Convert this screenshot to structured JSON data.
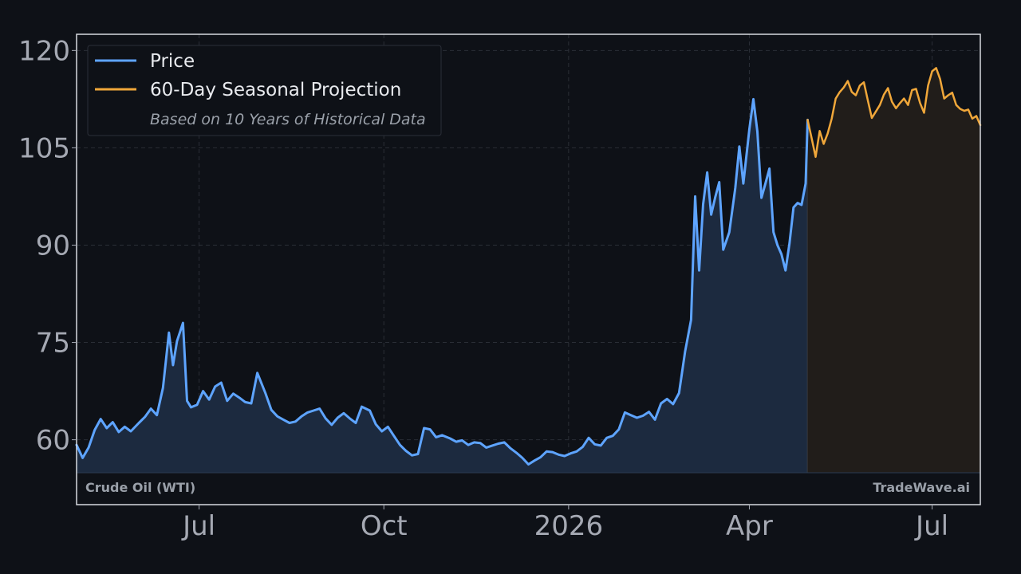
{
  "chart_data": {
    "type": "line",
    "instrument": "Crude Oil (WTI)",
    "watermark": "TradeWave.ai",
    "x_axis": {
      "tick_labels": [
        "Jul",
        "Oct",
        "2026",
        "Apr",
        "Jul"
      ],
      "ticks": [
        "2025-07-01",
        "2025-10-01",
        "2026-01-01",
        "2026-04-01",
        "2026-07-01"
      ],
      "range": [
        "2025-05-01",
        "2026-07-25"
      ]
    },
    "y_axis": {
      "tick_labels": [
        "60",
        "75",
        "90",
        "105",
        "120"
      ],
      "ticks": [
        60,
        75,
        90,
        105,
        120
      ],
      "range": [
        50,
        122.5
      ]
    },
    "grid": true,
    "legend": {
      "placement": "top-left",
      "entries": [
        {
          "label": "Price",
          "color": "#5ea4ff"
        },
        {
          "label": "60-Day Seasonal Projection",
          "color": "#f0a73a"
        }
      ],
      "note": "Based on 10 Years of Historical Data"
    },
    "series": [
      {
        "name": "Price",
        "color": "#5ea4ff",
        "points": [
          [
            "2025-05-01",
            59.2
          ],
          [
            "2025-05-04",
            57.2
          ],
          [
            "2025-05-07",
            58.8
          ],
          [
            "2025-05-10",
            61.5
          ],
          [
            "2025-05-13",
            63.2
          ],
          [
            "2025-05-16",
            61.8
          ],
          [
            "2025-05-19",
            62.7
          ],
          [
            "2025-05-22",
            61.2
          ],
          [
            "2025-05-25",
            62.0
          ],
          [
            "2025-05-28",
            61.3
          ],
          [
            "2025-06-01",
            62.6
          ],
          [
            "2025-06-04",
            63.5
          ],
          [
            "2025-06-07",
            64.8
          ],
          [
            "2025-06-10",
            63.8
          ],
          [
            "2025-06-13",
            68.0
          ],
          [
            "2025-06-16",
            76.5
          ],
          [
            "2025-06-18",
            71.5
          ],
          [
            "2025-06-20",
            75.2
          ],
          [
            "2025-06-23",
            78.0
          ],
          [
            "2025-06-25",
            66.0
          ],
          [
            "2025-06-27",
            65.0
          ],
          [
            "2025-06-30",
            65.4
          ],
          [
            "2025-07-03",
            67.5
          ],
          [
            "2025-07-06",
            66.2
          ],
          [
            "2025-07-09",
            68.2
          ],
          [
            "2025-07-12",
            68.8
          ],
          [
            "2025-07-15",
            66.0
          ],
          [
            "2025-07-18",
            67.1
          ],
          [
            "2025-07-21",
            66.5
          ],
          [
            "2025-07-24",
            65.8
          ],
          [
            "2025-07-27",
            65.6
          ],
          [
            "2025-07-30",
            70.3
          ],
          [
            "2025-08-03",
            67.2
          ],
          [
            "2025-08-06",
            64.6
          ],
          [
            "2025-08-09",
            63.6
          ],
          [
            "2025-08-12",
            63.1
          ],
          [
            "2025-08-15",
            62.6
          ],
          [
            "2025-08-18",
            62.8
          ],
          [
            "2025-08-21",
            63.6
          ],
          [
            "2025-08-24",
            64.2
          ],
          [
            "2025-08-27",
            64.5
          ],
          [
            "2025-08-30",
            64.8
          ],
          [
            "2025-09-02",
            63.3
          ],
          [
            "2025-09-05",
            62.3
          ],
          [
            "2025-09-08",
            63.4
          ],
          [
            "2025-09-11",
            64.1
          ],
          [
            "2025-09-14",
            63.3
          ],
          [
            "2025-09-17",
            62.6
          ],
          [
            "2025-09-20",
            65.1
          ],
          [
            "2025-09-24",
            64.5
          ],
          [
            "2025-09-27",
            62.4
          ],
          [
            "2025-09-30",
            61.3
          ],
          [
            "2025-10-03",
            62.0
          ],
          [
            "2025-10-06",
            60.6
          ],
          [
            "2025-10-09",
            59.2
          ],
          [
            "2025-10-12",
            58.3
          ],
          [
            "2025-10-15",
            57.6
          ],
          [
            "2025-10-18",
            57.8
          ],
          [
            "2025-10-21",
            61.8
          ],
          [
            "2025-10-24",
            61.6
          ],
          [
            "2025-10-27",
            60.4
          ],
          [
            "2025-10-30",
            60.7
          ],
          [
            "2025-11-03",
            60.2
          ],
          [
            "2025-11-06",
            59.7
          ],
          [
            "2025-11-09",
            59.9
          ],
          [
            "2025-11-12",
            59.2
          ],
          [
            "2025-11-15",
            59.6
          ],
          [
            "2025-11-18",
            59.5
          ],
          [
            "2025-11-21",
            58.8
          ],
          [
            "2025-11-24",
            59.1
          ],
          [
            "2025-11-27",
            59.4
          ],
          [
            "2025-11-30",
            59.6
          ],
          [
            "2025-12-03",
            58.7
          ],
          [
            "2025-12-06",
            58.0
          ],
          [
            "2025-12-09",
            57.2
          ],
          [
            "2025-12-12",
            56.2
          ],
          [
            "2025-12-15",
            56.8
          ],
          [
            "2025-12-18",
            57.3
          ],
          [
            "2025-12-21",
            58.2
          ],
          [
            "2025-12-24",
            58.1
          ],
          [
            "2025-12-27",
            57.7
          ],
          [
            "2025-12-30",
            57.5
          ],
          [
            "2026-01-02",
            57.9
          ],
          [
            "2026-01-05",
            58.2
          ],
          [
            "2026-01-08",
            58.9
          ],
          [
            "2026-01-11",
            60.3
          ],
          [
            "2026-01-14",
            59.3
          ],
          [
            "2026-01-17",
            59.1
          ],
          [
            "2026-01-20",
            60.3
          ],
          [
            "2026-01-23",
            60.6
          ],
          [
            "2026-01-26",
            61.6
          ],
          [
            "2026-01-29",
            64.2
          ],
          [
            "2026-02-01",
            63.8
          ],
          [
            "2026-02-04",
            63.4
          ],
          [
            "2026-02-07",
            63.7
          ],
          [
            "2026-02-10",
            64.3
          ],
          [
            "2026-02-13",
            63.1
          ],
          [
            "2026-02-16",
            65.6
          ],
          [
            "2026-02-19",
            66.3
          ],
          [
            "2026-02-22",
            65.5
          ],
          [
            "2026-02-25",
            67.2
          ],
          [
            "2026-02-28",
            73.6
          ],
          [
            "2026-03-03",
            78.5
          ],
          [
            "2026-03-05",
            97.5
          ],
          [
            "2026-03-07",
            86.1
          ],
          [
            "2026-03-09",
            96.3
          ],
          [
            "2026-03-11",
            101.2
          ],
          [
            "2026-03-13",
            94.7
          ],
          [
            "2026-03-15",
            97.4
          ],
          [
            "2026-03-17",
            99.7
          ],
          [
            "2026-03-19",
            89.3
          ],
          [
            "2026-03-22",
            92.0
          ],
          [
            "2026-03-25",
            98.8
          ],
          [
            "2026-03-27",
            105.2
          ],
          [
            "2026-03-29",
            99.5
          ],
          [
            "2026-04-01",
            107.9
          ],
          [
            "2026-04-03",
            112.5
          ],
          [
            "2026-04-05",
            107.5
          ],
          [
            "2026-04-07",
            97.3
          ],
          [
            "2026-04-09",
            99.5
          ],
          [
            "2026-04-11",
            101.8
          ],
          [
            "2026-04-13",
            92.0
          ],
          [
            "2026-04-15",
            90.0
          ],
          [
            "2026-04-17",
            88.6
          ],
          [
            "2026-04-19",
            86.1
          ],
          [
            "2026-04-21",
            90.3
          ],
          [
            "2026-04-23",
            95.8
          ],
          [
            "2026-04-25",
            96.5
          ],
          [
            "2026-04-27",
            96.2
          ],
          [
            "2026-04-29",
            99.5
          ],
          [
            "2026-04-30",
            109.3
          ]
        ]
      },
      {
        "name": "60-Day Seasonal Projection",
        "color": "#f0a73a",
        "points": [
          [
            "2026-04-30",
            109.3
          ],
          [
            "2026-05-02",
            106.5
          ],
          [
            "2026-05-04",
            103.6
          ],
          [
            "2026-05-06",
            107.6
          ],
          [
            "2026-05-08",
            105.6
          ],
          [
            "2026-05-10",
            107.2
          ],
          [
            "2026-05-12",
            109.5
          ],
          [
            "2026-05-14",
            112.6
          ],
          [
            "2026-05-16",
            113.6
          ],
          [
            "2026-05-18",
            114.3
          ],
          [
            "2026-05-20",
            115.3
          ],
          [
            "2026-05-22",
            113.6
          ],
          [
            "2026-05-24",
            113.1
          ],
          [
            "2026-05-26",
            114.6
          ],
          [
            "2026-05-28",
            115.1
          ],
          [
            "2026-05-30",
            112.3
          ],
          [
            "2026-06-01",
            109.6
          ],
          [
            "2026-06-03",
            110.6
          ],
          [
            "2026-06-05",
            111.6
          ],
          [
            "2026-06-07",
            113.2
          ],
          [
            "2026-06-09",
            114.2
          ],
          [
            "2026-06-11",
            112.1
          ],
          [
            "2026-06-13",
            111.1
          ],
          [
            "2026-06-15",
            111.9
          ],
          [
            "2026-06-17",
            112.6
          ],
          [
            "2026-06-19",
            111.6
          ],
          [
            "2026-06-21",
            113.9
          ],
          [
            "2026-06-23",
            114.1
          ],
          [
            "2026-06-25",
            111.9
          ],
          [
            "2026-06-27",
            110.4
          ],
          [
            "2026-06-29",
            114.6
          ],
          [
            "2026-07-01",
            116.8
          ],
          [
            "2026-07-03",
            117.3
          ],
          [
            "2026-07-05",
            115.6
          ],
          [
            "2026-07-07",
            112.6
          ],
          [
            "2026-07-09",
            113.1
          ],
          [
            "2026-07-11",
            113.5
          ],
          [
            "2026-07-13",
            111.6
          ],
          [
            "2026-07-15",
            111.0
          ],
          [
            "2026-07-17",
            110.7
          ],
          [
            "2026-07-19",
            110.9
          ],
          [
            "2026-07-21",
            109.5
          ],
          [
            "2026-07-23",
            109.9
          ],
          [
            "2026-07-25",
            108.5
          ]
        ]
      }
    ]
  }
}
